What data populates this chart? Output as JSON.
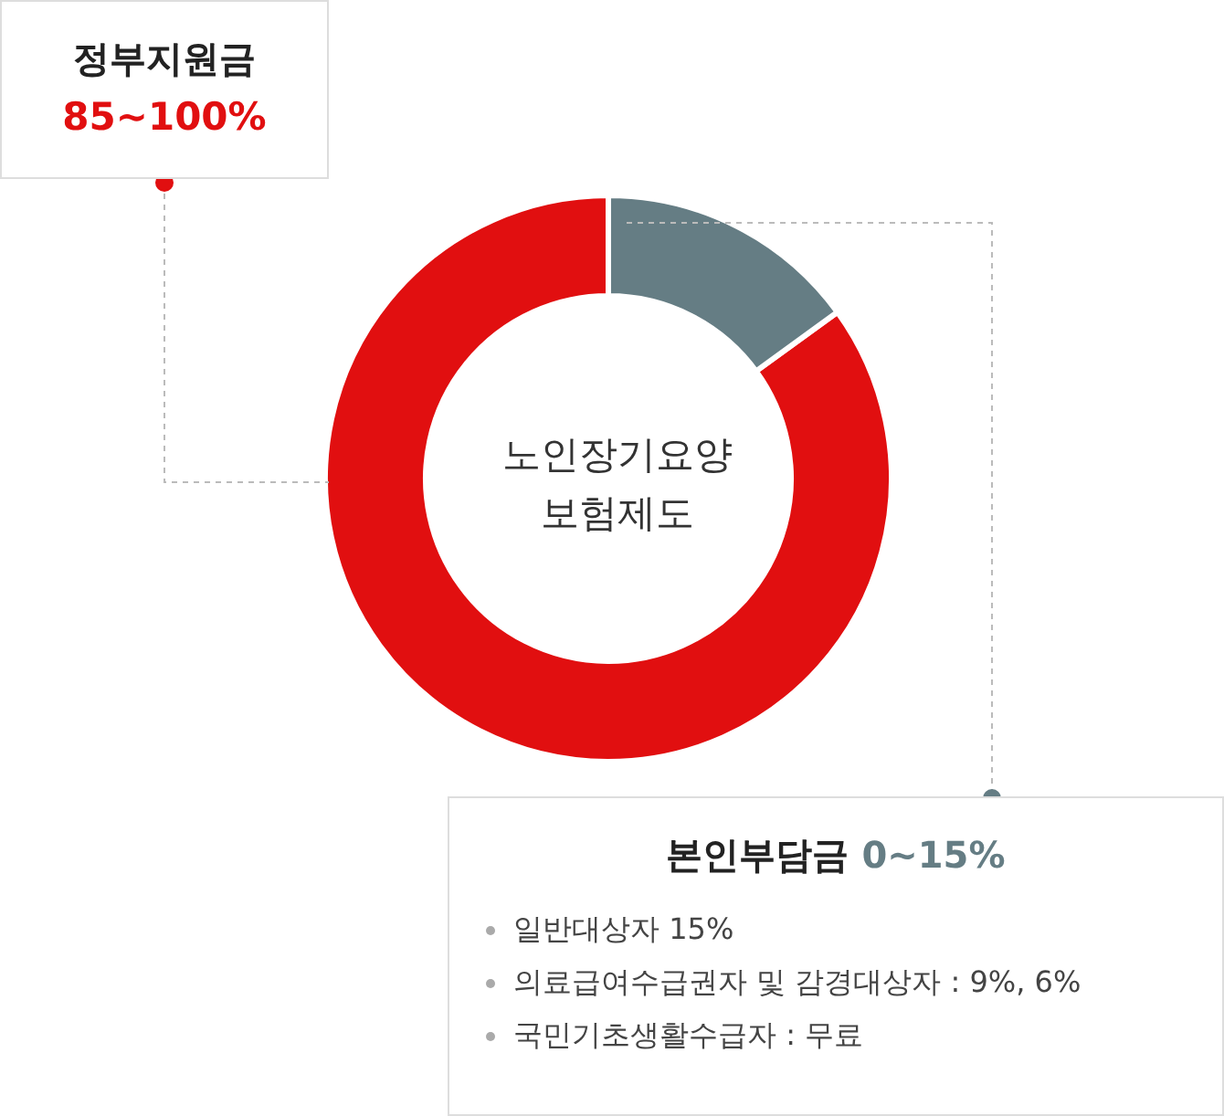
{
  "chart_data": {
    "type": "donut",
    "title": "노인장기요양\n보험제도",
    "categories": [
      "정부지원금",
      "본인부담금"
    ],
    "values": [
      85,
      15
    ],
    "colors": [
      "#e10f10",
      "#657d84"
    ],
    "value_labels": [
      "85~100%",
      "0~15%"
    ],
    "annotations": [
      "일반대상자 15%",
      "의료급여수급권자 및 감경대상자 : 9%, 6%",
      "국민기초생활수급자 : 무료"
    ]
  }
}
